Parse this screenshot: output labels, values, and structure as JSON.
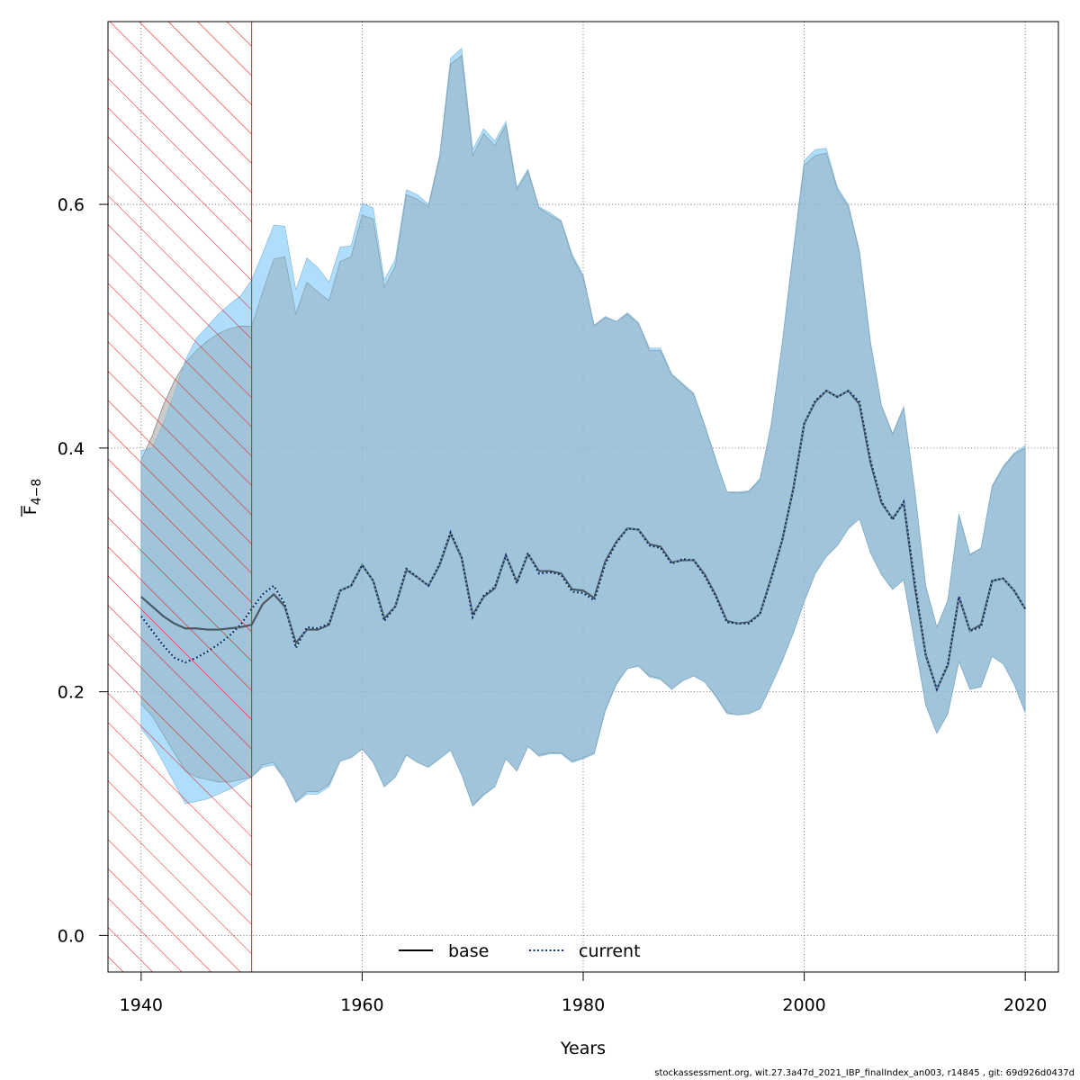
{
  "chart_data": {
    "type": "line",
    "xlabel": "Years",
    "ylabel": "F̄4−8",
    "ylabel_main": "F",
    "ylabel_sub": "4−8",
    "xlim": [
      1937,
      2023
    ],
    "ylim": [
      -0.03,
      0.75
    ],
    "x_ticks": [
      "1940",
      "1960",
      "1980",
      "2000",
      "2020"
    ],
    "y_ticks": [
      "0.0",
      "0.2",
      "0.4",
      "0.6"
    ],
    "grid": true,
    "legend_position": "bottom-center",
    "shaded_region": {
      "x_start": 1937,
      "x_end": 1950,
      "color": "#e41a1c",
      "pattern": "hatched"
    },
    "colors": {
      "base_band": "#999999",
      "current_band": "#87cefa",
      "overlap": "#a3c2d4",
      "base_line": "#000000",
      "current_line": "#08306b"
    },
    "x": [
      1940,
      1941,
      1942,
      1943,
      1944,
      1945,
      1946,
      1947,
      1948,
      1949,
      1950,
      1951,
      1952,
      1953,
      1954,
      1955,
      1956,
      1957,
      1958,
      1959,
      1960,
      1961,
      1962,
      1963,
      1964,
      1965,
      1966,
      1967,
      1968,
      1969,
      1970,
      1971,
      1972,
      1973,
      1974,
      1975,
      1976,
      1977,
      1978,
      1979,
      1980,
      1981,
      1982,
      1983,
      1984,
      1985,
      1986,
      1987,
      1988,
      1989,
      1990,
      1991,
      1992,
      1993,
      1994,
      1995,
      1996,
      1997,
      1998,
      1999,
      2000,
      2001,
      2002,
      2003,
      2004,
      2005,
      2006,
      2007,
      2008,
      2009,
      2010,
      2011,
      2012,
      2013,
      2014,
      2015,
      2016,
      2017,
      2018,
      2019,
      2020
    ],
    "series": [
      {
        "name": "base",
        "line_style": "solid",
        "values": [
          0.278,
          0.27,
          0.262,
          0.256,
          0.252,
          0.252,
          0.251,
          0.251,
          0.252,
          0.253,
          0.255,
          0.272,
          0.28,
          0.27,
          0.24,
          0.251,
          0.251,
          0.255,
          0.283,
          0.287,
          0.304,
          0.291,
          0.26,
          0.27,
          0.3,
          0.294,
          0.287,
          0.304,
          0.33,
          0.31,
          0.263,
          0.278,
          0.285,
          0.312,
          0.29,
          0.313,
          0.299,
          0.299,
          0.297,
          0.284,
          0.283,
          0.277,
          0.307,
          0.323,
          0.334,
          0.333,
          0.321,
          0.319,
          0.306,
          0.308,
          0.308,
          0.296,
          0.279,
          0.258,
          0.256,
          0.257,
          0.264,
          0.293,
          0.324,
          0.366,
          0.42,
          0.438,
          0.447,
          0.442,
          0.447,
          0.436,
          0.388,
          0.355,
          0.342,
          0.355,
          0.287,
          0.23,
          0.202,
          0.222,
          0.278,
          0.25,
          0.255,
          0.291,
          0.293,
          0.283,
          0.268
        ],
        "lower": [
          0.19,
          0.18,
          0.165,
          0.15,
          0.135,
          0.13,
          0.128,
          0.126,
          0.126,
          0.128,
          0.13,
          0.14,
          0.142,
          0.128,
          0.11,
          0.118,
          0.118,
          0.124,
          0.143,
          0.146,
          0.153,
          0.142,
          0.122,
          0.13,
          0.148,
          0.142,
          0.138,
          0.145,
          0.152,
          0.132,
          0.107,
          0.116,
          0.122,
          0.145,
          0.135,
          0.155,
          0.148,
          0.15,
          0.15,
          0.143,
          0.146,
          0.15,
          0.185,
          0.207,
          0.219,
          0.221,
          0.213,
          0.211,
          0.202,
          0.209,
          0.213,
          0.208,
          0.197,
          0.183,
          0.181,
          0.182,
          0.186,
          0.205,
          0.225,
          0.248,
          0.274,
          0.297,
          0.311,
          0.32,
          0.334,
          0.342,
          0.314,
          0.296,
          0.284,
          0.292,
          0.24,
          0.189,
          0.166,
          0.182,
          0.225,
          0.202,
          0.204,
          0.229,
          0.223,
          0.206,
          0.183
        ],
        "upper": [
          0.39,
          0.41,
          0.435,
          0.455,
          0.47,
          0.48,
          0.488,
          0.494,
          0.498,
          0.5,
          0.5,
          0.528,
          0.555,
          0.557,
          0.51,
          0.536,
          0.528,
          0.521,
          0.553,
          0.557,
          0.591,
          0.588,
          0.532,
          0.549,
          0.608,
          0.604,
          0.598,
          0.638,
          0.715,
          0.722,
          0.64,
          0.658,
          0.648,
          0.665,
          0.612,
          0.627,
          0.597,
          0.591,
          0.586,
          0.557,
          0.54,
          0.5,
          0.507,
          0.504,
          0.51,
          0.502,
          0.48,
          0.48,
          0.46,
          0.452,
          0.444,
          0.418,
          0.39,
          0.364,
          0.363,
          0.364,
          0.374,
          0.418,
          0.485,
          0.56,
          0.632,
          0.64,
          0.642,
          0.612,
          0.598,
          0.56,
          0.486,
          0.434,
          0.411,
          0.433,
          0.365,
          0.286,
          0.253,
          0.275,
          0.345,
          0.312,
          0.318,
          0.368,
          0.384,
          0.395,
          0.4
        ]
      },
      {
        "name": "current",
        "line_style": "dotted",
        "values": [
          0.262,
          0.25,
          0.238,
          0.228,
          0.224,
          0.228,
          0.233,
          0.239,
          0.246,
          0.255,
          0.268,
          0.28,
          0.287,
          0.272,
          0.236,
          0.253,
          0.252,
          0.256,
          0.283,
          0.287,
          0.304,
          0.291,
          0.258,
          0.27,
          0.301,
          0.294,
          0.287,
          0.305,
          0.331,
          0.31,
          0.261,
          0.279,
          0.286,
          0.312,
          0.289,
          0.314,
          0.297,
          0.298,
          0.296,
          0.282,
          0.281,
          0.275,
          0.305,
          0.322,
          0.334,
          0.333,
          0.32,
          0.318,
          0.305,
          0.309,
          0.308,
          0.295,
          0.278,
          0.257,
          0.256,
          0.256,
          0.264,
          0.292,
          0.324,
          0.366,
          0.42,
          0.439,
          0.447,
          0.442,
          0.447,
          0.438,
          0.39,
          0.356,
          0.341,
          0.356,
          0.29,
          0.23,
          0.202,
          0.223,
          0.278,
          0.25,
          0.253,
          0.291,
          0.293,
          0.283,
          0.268
        ],
        "lower": [
          0.17,
          0.158,
          0.142,
          0.125,
          0.108,
          0.11,
          0.112,
          0.116,
          0.12,
          0.125,
          0.13,
          0.138,
          0.14,
          0.128,
          0.109,
          0.116,
          0.116,
          0.122,
          0.143,
          0.146,
          0.153,
          0.142,
          0.122,
          0.13,
          0.148,
          0.142,
          0.138,
          0.145,
          0.152,
          0.132,
          0.106,
          0.115,
          0.122,
          0.145,
          0.135,
          0.155,
          0.147,
          0.149,
          0.149,
          0.142,
          0.145,
          0.149,
          0.184,
          0.206,
          0.219,
          0.221,
          0.212,
          0.21,
          0.202,
          0.209,
          0.213,
          0.208,
          0.196,
          0.182,
          0.181,
          0.182,
          0.186,
          0.205,
          0.225,
          0.248,
          0.274,
          0.297,
          0.311,
          0.32,
          0.334,
          0.342,
          0.314,
          0.296,
          0.284,
          0.292,
          0.24,
          0.189,
          0.166,
          0.182,
          0.225,
          0.202,
          0.204,
          0.229,
          0.223,
          0.206,
          0.183
        ],
        "upper": [
          0.398,
          0.4,
          0.42,
          0.445,
          0.472,
          0.49,
          0.5,
          0.51,
          0.518,
          0.525,
          0.538,
          0.56,
          0.583,
          0.582,
          0.53,
          0.556,
          0.548,
          0.536,
          0.565,
          0.566,
          0.601,
          0.597,
          0.538,
          0.555,
          0.612,
          0.608,
          0.6,
          0.64,
          0.72,
          0.728,
          0.645,
          0.662,
          0.652,
          0.668,
          0.614,
          0.629,
          0.598,
          0.593,
          0.587,
          0.559,
          0.542,
          0.501,
          0.508,
          0.504,
          0.511,
          0.503,
          0.482,
          0.482,
          0.461,
          0.453,
          0.445,
          0.419,
          0.391,
          0.364,
          0.364,
          0.365,
          0.375,
          0.419,
          0.486,
          0.562,
          0.636,
          0.645,
          0.646,
          0.614,
          0.6,
          0.562,
          0.487,
          0.435,
          0.412,
          0.434,
          0.366,
          0.287,
          0.253,
          0.275,
          0.346,
          0.313,
          0.318,
          0.369,
          0.385,
          0.396,
          0.402
        ]
      }
    ]
  },
  "footer_text": "stockassessment.org, wit.27.3a47d_2021_IBP_finalIndex_an003, r14845 , git: 69d926d0437d"
}
